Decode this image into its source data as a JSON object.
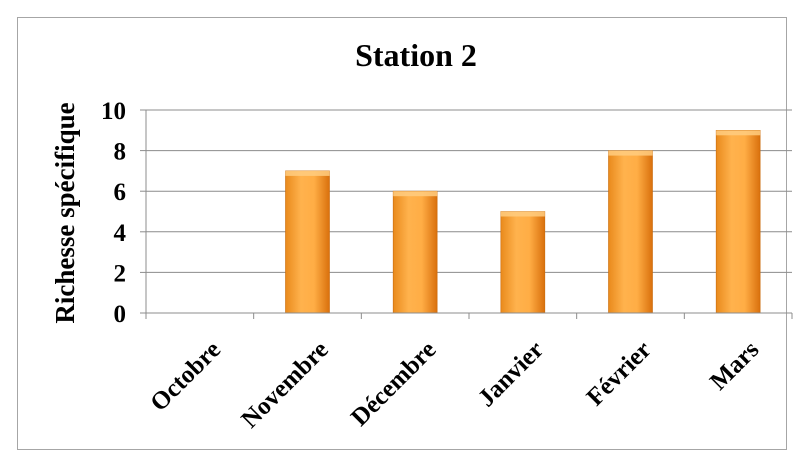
{
  "chart_data": {
    "type": "bar",
    "title": "Station 2",
    "xlabel": "",
    "ylabel": "Richesse spécifique",
    "categories": [
      "Octobre",
      "Novembre",
      "Décembre",
      "Janvier",
      "Février",
      "Mars"
    ],
    "values": [
      0,
      7,
      6,
      5,
      8,
      9
    ],
    "ylim": [
      0,
      10
    ],
    "yticks": [
      0,
      2,
      4,
      6,
      8,
      10
    ],
    "grid": true,
    "legend": "none",
    "colors": {
      "bar_light": "#ffb24d",
      "bar_dark": "#e07a12",
      "bar_top": "#ffcc80"
    }
  }
}
